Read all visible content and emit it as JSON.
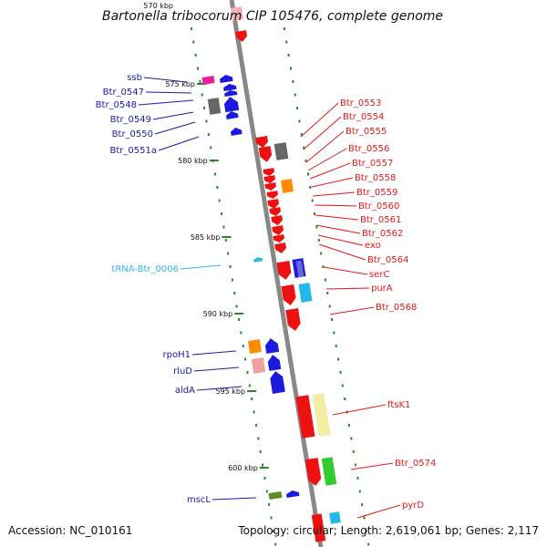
{
  "title": "Bartonella tribocorum CIP 105476, complete genome",
  "top_tick": "570 kbp",
  "ticks": [
    "575 kbp",
    "580 kbp",
    "585 kbp",
    "590 kbp",
    "595 kbp",
    "600 kbp"
  ],
  "footer": {
    "accession": "Accession: NC_010161",
    "topology": "Topology: circular; Length: 2,619,061 bp; Genes: 2,117"
  },
  "colors": {
    "forward_label": "#1a1aa6",
    "reverse_label": "#e01818",
    "trna_label": "#33b8e8",
    "forward_gene": "#1a1ae0",
    "reverse_gene": "#ee1111",
    "backbone": "#888888",
    "dots": "#2a8a2a"
  },
  "left_labels": [
    "ssb",
    "Btr_0547",
    "Btr_0548",
    "Btr_0549",
    "Btr_0550",
    "Btr_0551a",
    "tRNA-Btr_0006",
    "rpoH1",
    "rluD",
    "aldA",
    "mscL"
  ],
  "right_labels": [
    "Btr_0553",
    "Btr_0554",
    "Btr_0555",
    "Btr_0556",
    "Btr_0557",
    "Btr_0558",
    "Btr_0559",
    "Btr_0560",
    "Btr_0561",
    "Btr_0562",
    "exo",
    "Btr_0564",
    "serC",
    "purA",
    "Btr_0568",
    "ftsK1",
    "Btr_0574",
    "pyrD"
  ]
}
